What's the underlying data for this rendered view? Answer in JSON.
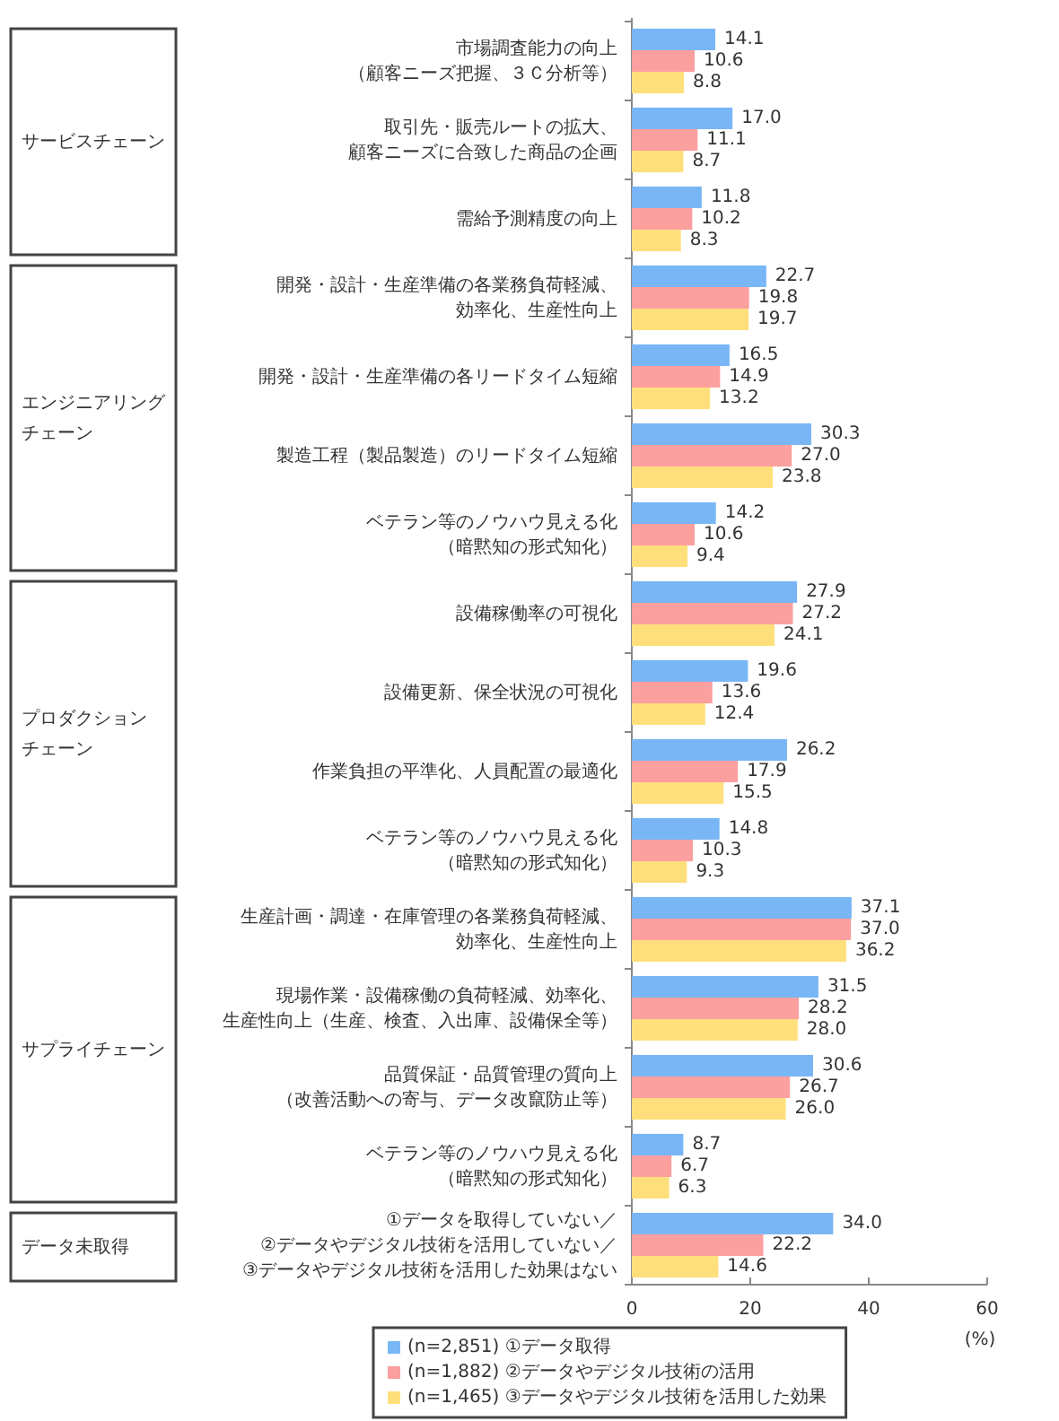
{
  "chart_data": {
    "type": "bar",
    "orientation": "horizontal",
    "categories": [
      "市場調査能力の向上（顧客ニーズ把握、３Ｃ分析等）",
      "取引先・販売ルートの拡大、顧客ニーズに合致した商品の企画",
      "需給予測精度の向上",
      "開発・設計・生産準備の各業務負荷軽減、効率化、生産性向上",
      "開発・設計・生産準備の各リードタイム短縮",
      "製造工程（製品製造）のリードタイム短縮",
      "ベテラン等のノウハウ見える化（暗黙知の形式知化）",
      "設備稼働率の可視化",
      "設備更新、保全状況の可視化",
      "作業負担の平準化、人員配置の最適化",
      "ベテラン等のノウハウ見える化（暗黙知の形式知化）",
      "生産計画・調達・在庫管理の各業務負荷軽減、効率化、生産性向上",
      "現場作業・設備稼働の負荷軽減、効率化、生産性向上（生産、検査、入出庫、設備保全等）",
      "品質保証・品質管理の質向上（改善活動への寄与、データ改竄防止等）",
      "ベテラン等のノウハウ見える化（暗黙知の形式知化）",
      "①データを取得していない／②データやデジタル技術を活用していない／③データやデジタル技術を活用した効果はない"
    ],
    "series": [
      {
        "name": "(n=2,851) ①データ取得",
        "color": "#78b6f6",
        "values": [
          14.1,
          17.0,
          11.8,
          22.7,
          16.5,
          30.3,
          14.2,
          27.9,
          19.6,
          26.2,
          14.8,
          37.1,
          31.5,
          30.6,
          8.7,
          34.0
        ],
        "value_labels": [
          "14.1",
          "17.0",
          "11.8",
          "22.7",
          "16.5",
          "30.3",
          "14.2",
          "27.9",
          "19.6",
          "26.2",
          "14.8",
          "37.1",
          "31.5",
          "30.6",
          "8.7",
          "34.0"
        ]
      },
      {
        "name": "(n=1,882) ②データやデジタル技術の活用",
        "color": "#fc9f9f",
        "values": [
          10.6,
          11.1,
          10.2,
          19.8,
          14.9,
          27.0,
          10.6,
          27.2,
          13.6,
          17.9,
          10.3,
          37.0,
          28.2,
          26.7,
          6.7,
          22.2
        ],
        "value_labels": [
          "10.6",
          "11.1",
          "10.2",
          "19.8",
          "14.9",
          "27.0",
          "10.6",
          "27.2",
          "13.6",
          "17.9",
          "10.3",
          "37.0",
          "28.2",
          "26.7",
          "6.7",
          "22.2"
        ]
      },
      {
        "name": "(n=1,465) ③データやデジタル技術を活用した効果",
        "color": "#ffdf7b",
        "values": [
          8.8,
          8.7,
          8.3,
          19.7,
          13.2,
          23.8,
          9.4,
          24.1,
          12.4,
          15.5,
          9.3,
          36.2,
          28.0,
          26.0,
          6.3,
          14.6
        ],
        "value_labels": [
          "8.8",
          "8.7",
          "8.3",
          "19.7",
          "13.2",
          "23.8",
          "9.4",
          "24.1",
          "12.4",
          "15.5",
          "9.3",
          "36.2",
          "28.0",
          "26.0",
          "6.3",
          "14.6"
        ]
      }
    ],
    "xlim": [
      0,
      60
    ],
    "xticks": [
      0,
      20,
      40,
      60
    ],
    "xlabel": "(%)",
    "legend": "bottom",
    "annotations": [
      "サービスチェーン",
      "エンジニアリングチェーン",
      "プロダクションチェーン",
      "サプライチェーン",
      "データ未取得"
    ]
  }
}
